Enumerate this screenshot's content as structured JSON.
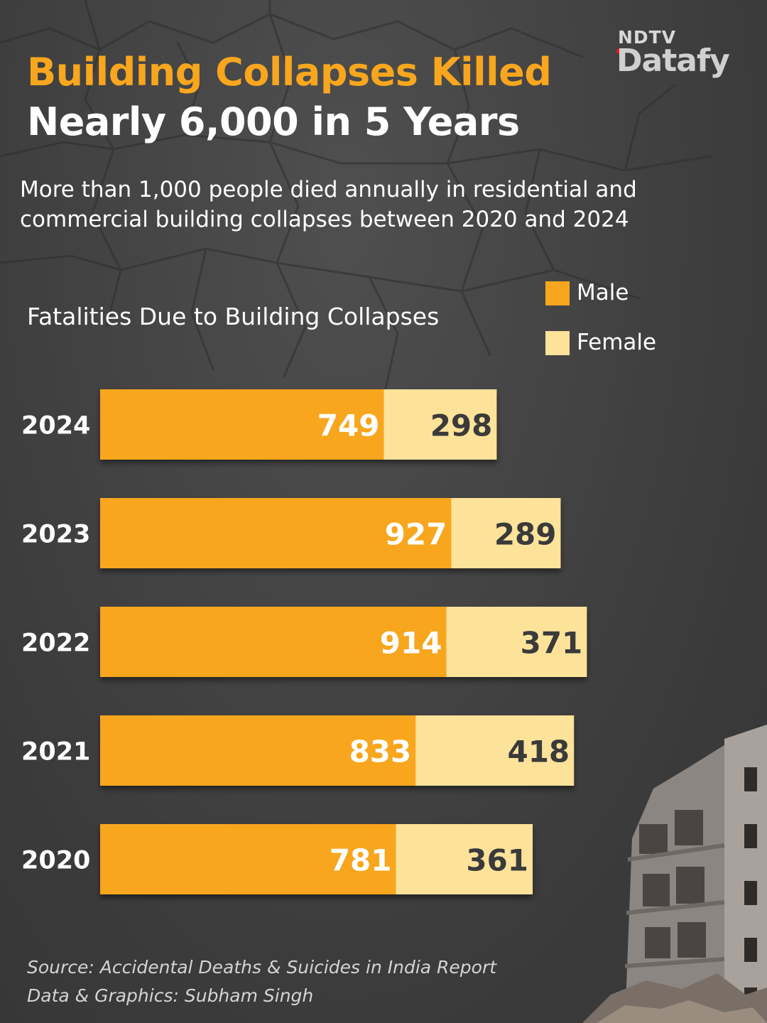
{
  "header": {
    "title_line_1": "Building Collapses Killed",
    "title_line_2": "Nearly 6,000 in 5 Years",
    "subtitle": "More than 1,000 people died annually in residential and commercial building collapses between 2020 and 2024"
  },
  "logo": {
    "top": "NDTV",
    "main": "Datafy"
  },
  "colors": {
    "male": "#F7A61E",
    "female": "#FDE29A",
    "male_label": "#ffffff",
    "female_label": "#3a3a3a"
  },
  "chart_data": {
    "type": "bar",
    "orientation": "horizontal",
    "stacked": true,
    "title": "Fatalities Due to Building Collapses",
    "categories": [
      "2024",
      "2023",
      "2022",
      "2021",
      "2020"
    ],
    "series": [
      {
        "name": "Male",
        "values": [
          749,
          927,
          914,
          833,
          781
        ]
      },
      {
        "name": "Female",
        "values": [
          298,
          289,
          371,
          418,
          361
        ]
      }
    ],
    "legend": [
      "Male",
      "Female"
    ],
    "legend_position": "top-right",
    "grid": false
  },
  "footer": {
    "source": "Source: Accidental Deaths & Suicides in India Report",
    "credit": "Data & Graphics: Subham Singh"
  }
}
